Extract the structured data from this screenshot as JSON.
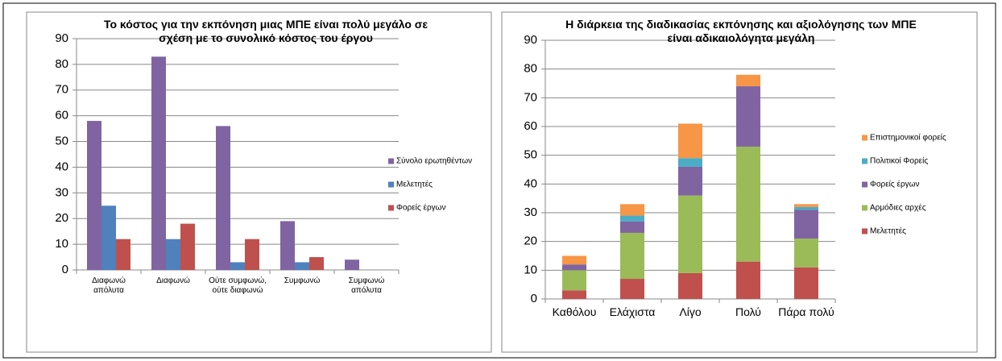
{
  "chart_data": [
    {
      "type": "bar",
      "title": "Το κόστος για την εκπόνηση μιας ΜΠΕ είναι πολύ μεγάλο σε σχέση με το συνολικό κόστος του έργου",
      "categories": [
        "Διαφωνώ απόλυτα",
        "Διαφωνώ",
        "Ούτε συμφωνώ, ούτε διαφωνώ",
        "Συμφωνώ",
        "Συμφωνώ απόλυτα"
      ],
      "series": [
        {
          "name": "Σύνολο ερωτηθέντων",
          "color": "#8064a2",
          "values": [
            58,
            83,
            56,
            19,
            4
          ]
        },
        {
          "name": "Μελετητές",
          "color": "#4f81bd",
          "values": [
            25,
            12,
            3,
            3,
            0
          ]
        },
        {
          "name": "Φορείς έργων",
          "color": "#c0504d",
          "values": [
            12,
            18,
            12,
            5,
            0
          ]
        }
      ],
      "ylim": [
        0,
        90
      ],
      "yticks": [
        0,
        10,
        20,
        30,
        40,
        50,
        60,
        70,
        80,
        90
      ],
      "grid": true,
      "legend": "right"
    },
    {
      "type": "bar",
      "stacked": true,
      "title": "Η διάρκεια της διαδικασίας εκπόνησης και αξιολόγησης των ΜΠΕ είναι αδικαιολόγητα  μεγάλη",
      "categories": [
        "Καθόλου",
        "Ελάχιστα",
        "Λίγο",
        "Πολύ",
        "Πάρα πολύ"
      ],
      "series": [
        {
          "name": "Μελετητές",
          "color": "#c0504d",
          "values": [
            3,
            7,
            9,
            13,
            11
          ]
        },
        {
          "name": "Αρμόδιες αρχές",
          "color": "#9bbb59",
          "values": [
            7,
            16,
            27,
            40,
            10
          ]
        },
        {
          "name": "Φορείς έργων",
          "color": "#8064a2",
          "values": [
            2,
            4,
            10,
            21,
            10
          ]
        },
        {
          "name": "Πολιτικοί Φορείς",
          "color": "#4bacc6",
          "values": [
            0,
            2,
            3,
            0,
            1
          ]
        },
        {
          "name": "Επιστημονικοί φορείς",
          "color": "#f79646",
          "values": [
            3,
            4,
            12,
            4,
            1
          ]
        }
      ],
      "ylim": [
        0,
        90
      ],
      "yticks": [
        0,
        10,
        20,
        30,
        40,
        50,
        60,
        70,
        80,
        90
      ],
      "grid": true,
      "legend": "right"
    }
  ]
}
